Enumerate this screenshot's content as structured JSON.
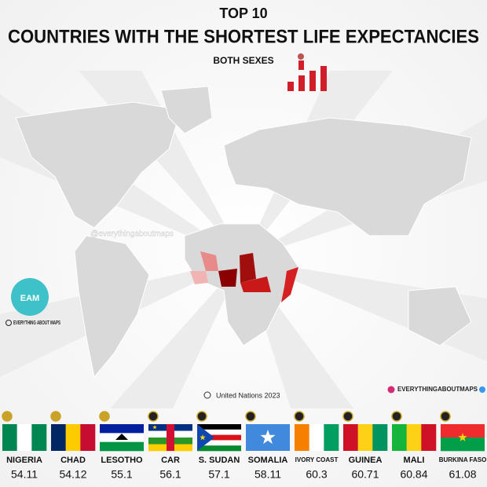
{
  "header": {
    "kicker": "TOP 10",
    "title": "COUNTRIES WITH THE SHORTEST LIFE EXPECTANCIES",
    "subtitle": "BOTH SEXES"
  },
  "watermark": "@everythingaboutmaps",
  "brand": {
    "logo": "EAM",
    "name": "EVERYTHING ABOUT MAPS",
    "handle": "EVERYTHINGABOUTMAPS"
  },
  "source": "United Nations 2023",
  "ranking": [
    {
      "country": "NIGERIA",
      "value": 54.11
    },
    {
      "country": "CHAD",
      "value": 54.12
    },
    {
      "country": "LESOTHO",
      "value": 55.1
    },
    {
      "country": "CAR",
      "value": 56.1
    },
    {
      "country": "S. SUDAN",
      "value": 57.1
    },
    {
      "country": "SOMALIA",
      "value": 58.11
    },
    {
      "country": "IVORY COAST",
      "value": 60.3
    },
    {
      "country": "GUINEA",
      "value": 60.71
    },
    {
      "country": "MALI",
      "value": 60.84
    },
    {
      "country": "BURKINA FASO",
      "value": 61.08
    }
  ]
}
